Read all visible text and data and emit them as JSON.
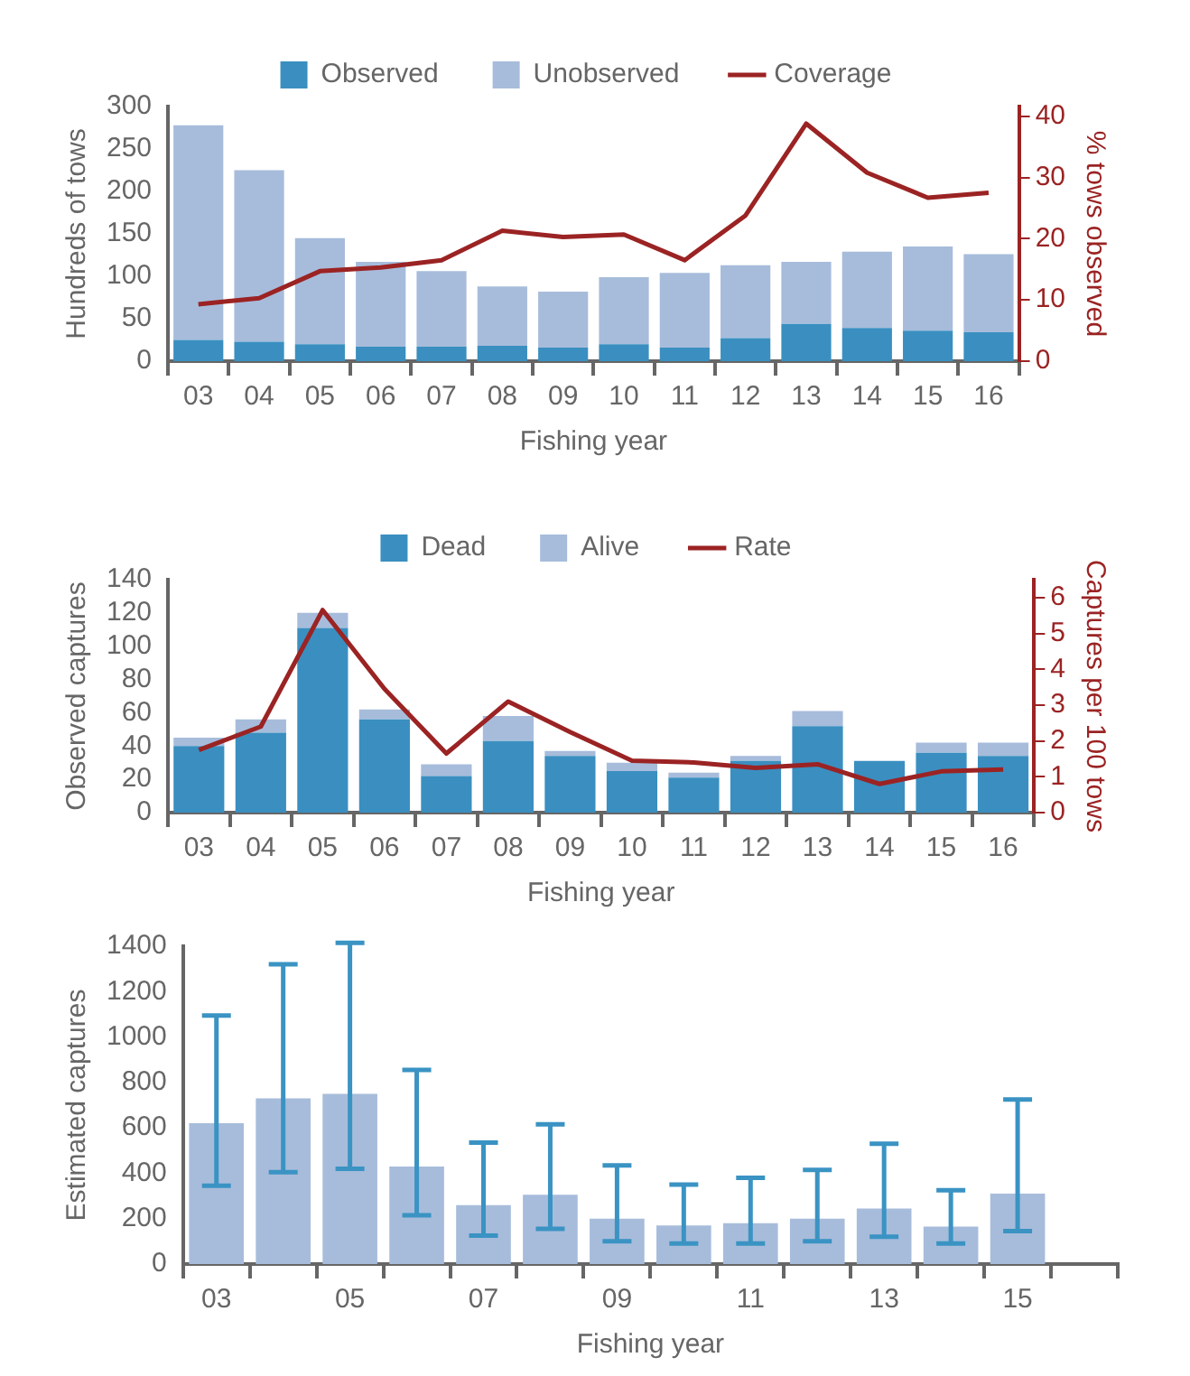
{
  "chart_data": [
    {
      "type": "bar",
      "stacked": true,
      "xlabel": "Fishing year",
      "ylabel": "Hundreds of tows",
      "y2label": "% tows observed",
      "legend": "top",
      "grid": false,
      "categories": [
        "03",
        "04",
        "05",
        "06",
        "07",
        "08",
        "09",
        "10",
        "11",
        "12",
        "13",
        "14",
        "15",
        "16"
      ],
      "ylim": [
        0,
        300
      ],
      "yticks": [
        0,
        50,
        100,
        150,
        200,
        250,
        300
      ],
      "y2lim": [
        0,
        41.6
      ],
      "y2ticks": [
        0,
        10,
        20,
        30,
        40
      ],
      "series": [
        {
          "name": "Observed",
          "color": "#3a8fc0",
          "values": [
            25,
            23,
            20,
            17,
            17,
            18,
            16,
            20,
            16,
            27,
            44,
            39,
            36,
            34
          ]
        },
        {
          "name": "Unobserved",
          "color": "#a7bcdb",
          "values": [
            253,
            202,
            125,
            100,
            89,
            70,
            66,
            79,
            88,
            86,
            73,
            90,
            99,
            92
          ]
        },
        {
          "name": "Coverage",
          "type": "line",
          "axis": "y2",
          "color": "#9b2323",
          "marker": "none",
          "values": [
            9.3,
            10.3,
            14.7,
            15.3,
            16.5,
            21.3,
            20.3,
            20.7,
            16.5,
            23.8,
            38.8,
            30.8,
            26.7,
            27.5
          ]
        }
      ]
    },
    {
      "type": "bar",
      "stacked": true,
      "xlabel": "Fishing year",
      "ylabel": "Observed captures",
      "y2label": "Captures per 100 tows",
      "legend": "top",
      "grid": false,
      "categories": [
        "03",
        "04",
        "05",
        "06",
        "07",
        "08",
        "09",
        "10",
        "11",
        "12",
        "13",
        "14",
        "15",
        "16"
      ],
      "ylim": [
        0,
        140
      ],
      "yticks": [
        0,
        20,
        40,
        60,
        80,
        100,
        120,
        140
      ],
      "y2lim": [
        0,
        6.5
      ],
      "y2ticks": [
        0,
        1,
        2,
        3,
        4,
        5,
        6
      ],
      "series": [
        {
          "name": "Dead",
          "color": "#3a8fc0",
          "values": [
            40,
            48,
            111,
            56,
            22,
            43,
            34,
            25,
            21,
            31,
            52,
            31,
            36,
            34
          ]
        },
        {
          "name": "Alive",
          "color": "#a7bcdb",
          "values": [
            5,
            8,
            9,
            6,
            7,
            15,
            3,
            5,
            3,
            3,
            9,
            0,
            6,
            8
          ]
        },
        {
          "name": "Rate",
          "type": "line",
          "axis": "y2",
          "color": "#9b2323",
          "marker": "none",
          "values": [
            1.75,
            2.4,
            5.65,
            3.45,
            1.65,
            3.1,
            2.25,
            1.45,
            1.4,
            1.25,
            1.35,
            0.8,
            1.15,
            1.2
          ]
        }
      ]
    },
    {
      "type": "bar",
      "xlabel": "Fishing year",
      "ylabel": "Estimated captures",
      "legend": false,
      "grid": false,
      "categories": [
        "03",
        null,
        "05",
        null,
        "07",
        null,
        "09",
        null,
        "11",
        null,
        "13",
        null,
        "15",
        null
      ],
      "ylim": [
        0,
        1400
      ],
      "yticks": [
        0,
        200,
        400,
        600,
        800,
        1000,
        1200,
        1400
      ],
      "color": "#a7bcdb",
      "values": [
        620,
        730,
        750,
        430,
        260,
        305,
        200,
        170,
        180,
        200,
        245,
        165,
        310,
        null
      ],
      "errors": [
        [
          345,
          1095
        ],
        [
          405,
          1320
        ],
        [
          420,
          1415
        ],
        [
          215,
          855
        ],
        [
          125,
          535
        ],
        [
          155,
          615
        ],
        [
          100,
          435
        ],
        [
          90,
          350
        ],
        [
          90,
          380
        ],
        [
          100,
          415
        ],
        [
          120,
          530
        ],
        [
          90,
          325
        ],
        [
          145,
          725
        ],
        null
      ]
    }
  ]
}
